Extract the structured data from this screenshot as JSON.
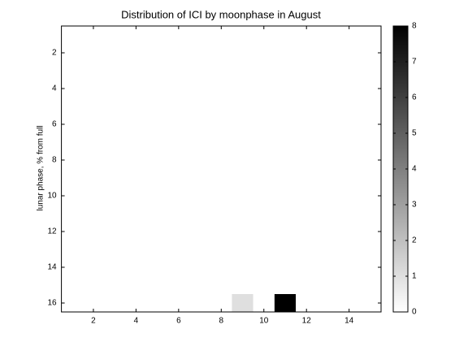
{
  "chart_data": {
    "type": "heatmap",
    "title": "Distribution of ICI by moonphase in August",
    "ylabel": "lunar phase, % from full",
    "z": [
      [
        0,
        0,
        0,
        0,
        0,
        0,
        0,
        0,
        0,
        0,
        0,
        0,
        0,
        0,
        0
      ],
      [
        0,
        0,
        0,
        0,
        0,
        0,
        0,
        0,
        0,
        0,
        0,
        0,
        0,
        0,
        0
      ],
      [
        0,
        0,
        0,
        0,
        0,
        0,
        0,
        0,
        0,
        0,
        0,
        0,
        0,
        0,
        0
      ],
      [
        0,
        0,
        0,
        0,
        0,
        0,
        0,
        0,
        0,
        0,
        0,
        0,
        0,
        0,
        0
      ],
      [
        0,
        0,
        0,
        0,
        0,
        0,
        0,
        0,
        0,
        0,
        0,
        0,
        0,
        0,
        0
      ],
      [
        0,
        0,
        0,
        0,
        0,
        0,
        0,
        0,
        0,
        0,
        0,
        0,
        0,
        0,
        0
      ],
      [
        0,
        0,
        0,
        0,
        0,
        0,
        0,
        0,
        0,
        0,
        0,
        0,
        0,
        0,
        0
      ],
      [
        0,
        0,
        0,
        0,
        0,
        0,
        0,
        0,
        0,
        0,
        0,
        0,
        0,
        0,
        0
      ],
      [
        0,
        0,
        0,
        0,
        0,
        0,
        0,
        0,
        0,
        0,
        0,
        0,
        0,
        0,
        0
      ],
      [
        0,
        0,
        0,
        0,
        0,
        0,
        0,
        0,
        0,
        0,
        0,
        0,
        0,
        0,
        0
      ],
      [
        0,
        0,
        0,
        0,
        0,
        0,
        0,
        0,
        0,
        0,
        0,
        0,
        0,
        0,
        0
      ],
      [
        0,
        0,
        0,
        0,
        0,
        0,
        0,
        0,
        0,
        0,
        0,
        0,
        0,
        0,
        0
      ],
      [
        0,
        0,
        0,
        0,
        0,
        0,
        0,
        0,
        0,
        0,
        0,
        0,
        0,
        0,
        0
      ],
      [
        0,
        0,
        0,
        0,
        0,
        0,
        0,
        0,
        0,
        0,
        0,
        0,
        0,
        0,
        0
      ],
      [
        0,
        0,
        0,
        0,
        0,
        0,
        0,
        0,
        0,
        0,
        0,
        0,
        0,
        0,
        0
      ],
      [
        0,
        0,
        0,
        0,
        0,
        0,
        0,
        0,
        1,
        0,
        8,
        0,
        0,
        0,
        0
      ]
    ],
    "xlim": [
      0.5,
      15.5
    ],
    "xticks": [
      2,
      4,
      6,
      8,
      10,
      12,
      14
    ],
    "ylim": [
      0.5,
      16.5
    ],
    "yticks": [
      2,
      4,
      6,
      8,
      10,
      12,
      14,
      16
    ],
    "y_reversed": true,
    "clim": [
      0,
      8
    ],
    "cticks": [
      0,
      1,
      2,
      3,
      4,
      5,
      6,
      7,
      8
    ],
    "colormap": [
      "#ffffff",
      "#000000"
    ]
  }
}
